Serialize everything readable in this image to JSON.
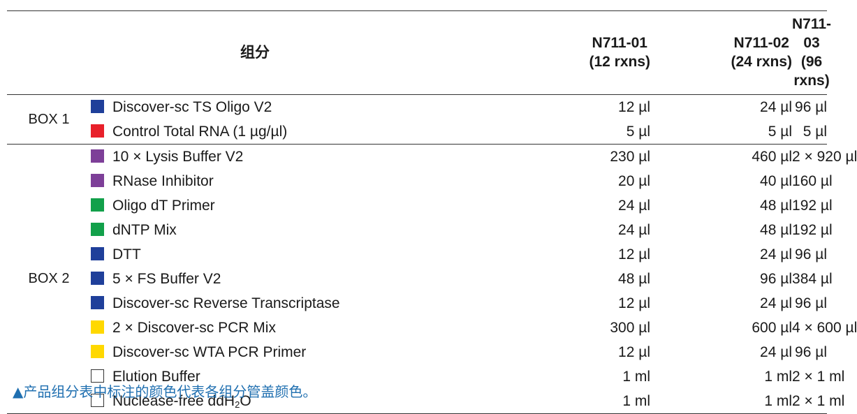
{
  "header": {
    "component": "组分",
    "sizes": [
      {
        "code": "N711-01",
        "rxns": "(12 rxns)"
      },
      {
        "code": "N711-02",
        "rxns": "(24 rxns)"
      },
      {
        "code": "N711-03",
        "rxns": "(96 rxns)"
      }
    ]
  },
  "boxes": [
    {
      "label": "BOX 1",
      "rows": [
        {
          "name": "Discover-sc TS Oligo V2",
          "color": "#1f3f9a",
          "amounts": [
            "12 µl",
            "24 µl",
            "96 µl"
          ]
        },
        {
          "name": "Control Total RNA (1 µg/µl)",
          "color": "#e8202a",
          "amounts": [
            "5 µl",
            "5 µl",
            "5 µl"
          ]
        }
      ]
    },
    {
      "label": "BOX 2",
      "rows": [
        {
          "name": "10 × Lysis Buffer V2",
          "color": "#7d3f98",
          "amounts": [
            "230 µl",
            "460 µl",
            "2 × 920 µl"
          ]
        },
        {
          "name": "RNase Inhibitor",
          "color": "#7d3f98",
          "amounts": [
            "20 µl",
            "40 µl",
            "160 µl"
          ]
        },
        {
          "name": "Oligo dT Primer",
          "color": "#12a04a",
          "amounts": [
            "24 µl",
            "48 µl",
            "192 µl"
          ]
        },
        {
          "name": "dNTP Mix",
          "color": "#12a04a",
          "amounts": [
            "24 µl",
            "48 µl",
            "192 µl"
          ]
        },
        {
          "name": "DTT",
          "color": "#1f3f9a",
          "amounts": [
            "12 µl",
            "24 µl",
            "96 µl"
          ]
        },
        {
          "name": "5 × FS Buffer V2",
          "color": "#1f3f9a",
          "amounts": [
            "48 µl",
            "96 µl",
            "384 µl"
          ]
        },
        {
          "name": "Discover-sc Reverse Transcriptase",
          "color": "#1f3f9a",
          "amounts": [
            "12 µl",
            "24 µl",
            "96 µl"
          ]
        },
        {
          "name": "2 × Discover-sc PCR Mix",
          "color": "#ffd800",
          "amounts": [
            "300 µl",
            "600 µl",
            "4 × 600 µl"
          ]
        },
        {
          "name": "Discover-sc WTA PCR Primer",
          "color": "#ffd800",
          "amounts": [
            "12 µl",
            "24 µl",
            "96 µl"
          ]
        },
        {
          "name": "Elution Buffer",
          "color": "#ffffff",
          "amounts": [
            "1 ml",
            "1 ml",
            "2 × 1 ml"
          ]
        },
        {
          "name": "Nuclease-free ddH",
          "name_sub": "2",
          "name_tail": "O",
          "color": "#ffffff",
          "amounts": [
            "1 ml",
            "1 ml",
            "2 × 1 ml"
          ]
        }
      ]
    }
  ],
  "footnote": "▲产品组分表中标注的颜色代表各组分管盖颜色。"
}
